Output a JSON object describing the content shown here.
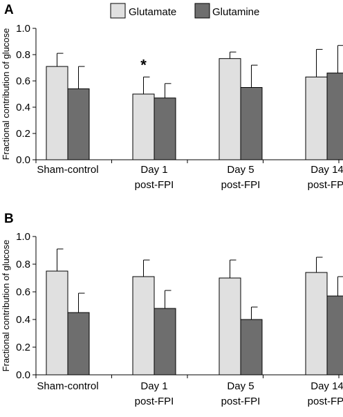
{
  "legend": {
    "items": [
      {
        "label": "Glutamate",
        "color": "#e0e0e0"
      },
      {
        "label": "Glutamine",
        "color": "#6e6e6e"
      }
    ]
  },
  "chart_data": [
    {
      "panel_label": "A",
      "type": "bar",
      "ylabel": "Fractional contribution of glucose",
      "ylim": [
        0,
        1.0
      ],
      "yticks": [
        "0.0",
        "0.2",
        "0.4",
        "0.6",
        "0.8",
        "1.0"
      ],
      "categories": [
        [
          "Sham-control"
        ],
        [
          "Day 1",
          "post-FPI"
        ],
        [
          "Day 5",
          "post-FPI"
        ],
        [
          "Day 14",
          "post-FPI"
        ]
      ],
      "series": [
        {
          "name": "Glutamate",
          "color": "#e0e0e0",
          "values": [
            0.71,
            0.5,
            0.77,
            0.63
          ],
          "errors": [
            0.1,
            0.13,
            0.05,
            0.21
          ]
        },
        {
          "name": "Glutamine",
          "color": "#6e6e6e",
          "values": [
            0.54,
            0.47,
            0.55,
            0.66
          ],
          "errors": [
            0.17,
            0.11,
            0.17,
            0.21
          ]
        }
      ],
      "annotations": [
        {
          "text": "*",
          "category": 1,
          "series": 0
        }
      ]
    },
    {
      "panel_label": "B",
      "type": "bar",
      "ylabel": "Fractional contribution of glucose",
      "ylim": [
        0,
        1.0
      ],
      "yticks": [
        "0.0",
        "0.2",
        "0.4",
        "0.6",
        "0.8",
        "1.0"
      ],
      "categories": [
        [
          "Sham-control"
        ],
        [
          "Day 1",
          "post-FPI"
        ],
        [
          "Day 5",
          "post-FPI"
        ],
        [
          "Day 14",
          "post-FPI"
        ]
      ],
      "series": [
        {
          "name": "Glutamate",
          "color": "#e0e0e0",
          "values": [
            0.75,
            0.71,
            0.7,
            0.74
          ],
          "errors": [
            0.16,
            0.12,
            0.13,
            0.11
          ]
        },
        {
          "name": "Glutamine",
          "color": "#6e6e6e",
          "values": [
            0.45,
            0.48,
            0.4,
            0.57
          ],
          "errors": [
            0.14,
            0.13,
            0.09,
            0.14
          ]
        }
      ],
      "annotations": []
    }
  ]
}
